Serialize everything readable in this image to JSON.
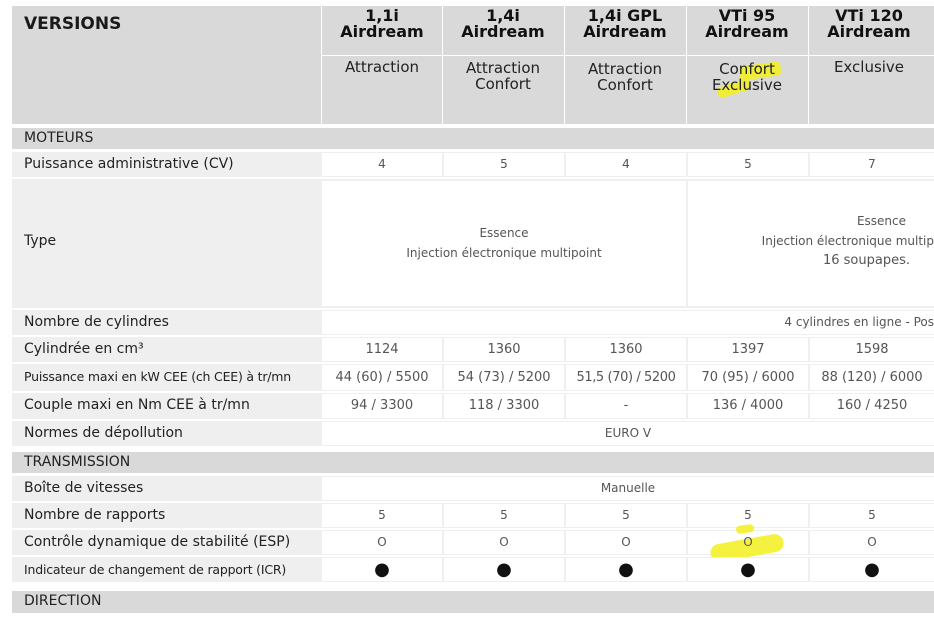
{
  "header": {
    "versions_label": "VERSIONS",
    "models": [
      {
        "name": "1,1i",
        "line": "Airdream",
        "sub1": "Attraction",
        "sub2": ""
      },
      {
        "name": "1,4i",
        "line": "Airdream",
        "sub1": "Attraction",
        "sub2": "Confort"
      },
      {
        "name": "1,4i GPL",
        "line": "Airdream",
        "sub1": "Attraction",
        "sub2": "Confort"
      },
      {
        "name": "VTi 95",
        "line": "Airdream",
        "sub1": "Confort",
        "sub2": "Exclusive"
      },
      {
        "name": "VTi 120",
        "line": "Airdream",
        "sub1": "Exclusive",
        "sub2": ""
      }
    ]
  },
  "sections": {
    "moteurs": "MOTEURS",
    "transmission": "TRANSMISSION",
    "direction": "DIRECTION"
  },
  "rows": {
    "puissance_admin": {
      "label": "Puissance administrative (CV)",
      "values": [
        "4",
        "5",
        "4",
        "5",
        "7"
      ]
    },
    "type": {
      "label": "Type",
      "left": [
        "Essence",
        "Injection électronique multipoint"
      ],
      "right": [
        "Essence",
        "Injection électronique multip",
        "16 soupapes."
      ]
    },
    "cylindres": {
      "label": "Nombre de cylindres",
      "value": "4 cylindres en ligne - Pos"
    },
    "cylindree": {
      "label": "Cylindrée en cm³",
      "values": [
        "1124",
        "1360",
        "1360",
        "1397",
        "1598"
      ]
    },
    "puissance_maxi": {
      "label": "Puissance maxi en kW CEE (ch CEE) à tr/mn",
      "values": [
        "44 (60) / 5500",
        "54 (73) / 5200",
        "51,5 (70) / 5200",
        "70 (95) / 6000",
        "88 (120) / 6000"
      ]
    },
    "couple": {
      "label": "Couple maxi en Nm CEE à tr/mn",
      "values": [
        "94 / 3300",
        "118 / 3300",
        "-",
        "136 / 4000",
        "160 / 4250"
      ]
    },
    "normes": {
      "label": "Normes de dépollution",
      "value": "EURO V"
    },
    "boite": {
      "label": "Boîte de vitesses",
      "value": "Manuelle"
    },
    "rapports": {
      "label": "Nombre de rapports",
      "values": [
        "5",
        "5",
        "5",
        "5",
        "5"
      ]
    },
    "esp": {
      "label": "Contrôle dynamique de stabilité (ESP)",
      "values": [
        "O",
        "O",
        "O",
        "O",
        "O"
      ]
    },
    "icr": {
      "label": "Indicateur de changement de rapport (ICR)",
      "values": [
        "●",
        "●",
        "●",
        "●",
        "●"
      ]
    }
  },
  "highlight_color": "#f2ef1d"
}
